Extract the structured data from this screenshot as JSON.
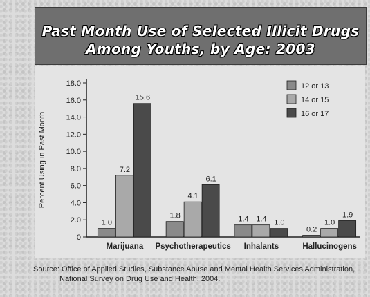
{
  "title": {
    "line1": "Past Month Use of Selected Illicit Drugs",
    "line2": "Among Youths, by Age: 2003"
  },
  "source": {
    "label": "Source:",
    "line1": "Office of Applied Studies, Substance Abuse and Mental Health Services Administration,",
    "line2": "National Survey on Drug Use and Health, 2004."
  },
  "colors": {
    "series_12_13": "#8a8a8a",
    "series_14_15": "#a9a9a9",
    "series_16_17": "#4a4a4a",
    "axis": "#222222"
  },
  "chart_data": {
    "type": "bar",
    "title": "Past Month Use of Selected Illicit Drugs Among Youths, by Age: 2003",
    "ylabel": "Percent Using in Past Month",
    "xlabel": "",
    "ylim": [
      0,
      18
    ],
    "yticks": [
      "0",
      "2.0",
      "4.0",
      "6.0",
      "8.0",
      "10.0",
      "12.0",
      "14.0",
      "16.0",
      "18.0"
    ],
    "categories": [
      "Marijuana",
      "Psychotherapeutics",
      "Inhalants",
      "Hallucinogens"
    ],
    "legend_position": "top-right",
    "grid": false,
    "series": [
      {
        "name": "12 or 13",
        "values": [
          1.0,
          1.8,
          1.4,
          0.2
        ],
        "labels": [
          "1.0",
          "1.8",
          "1.4",
          "0.2"
        ]
      },
      {
        "name": "14 or 15",
        "values": [
          7.2,
          4.1,
          1.4,
          1.0
        ],
        "labels": [
          "7.2",
          "4.1",
          "1.4",
          "1.0"
        ]
      },
      {
        "name": "16 or 17",
        "values": [
          15.6,
          6.1,
          1.0,
          1.9
        ],
        "labels": [
          "15.6",
          "6.1",
          "1.0",
          "1.9"
        ]
      }
    ]
  }
}
